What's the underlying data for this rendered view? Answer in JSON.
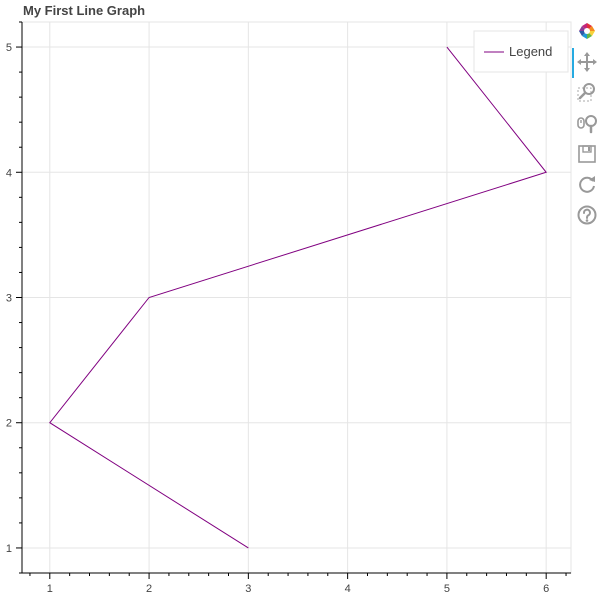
{
  "chart_data": {
    "type": "line",
    "title": "My First Line Graph",
    "x": [
      3,
      1,
      2,
      6,
      5
    ],
    "series": [
      {
        "name": "Legend",
        "values": [
          1,
          2,
          3,
          4,
          5
        ],
        "color": "#800080"
      }
    ],
    "xlim": [
      0.72,
      6.25
    ],
    "ylim": [
      0.8,
      5.2
    ],
    "xticks": [
      1,
      2,
      3,
      4,
      5,
      6
    ],
    "yticks": [
      1,
      2,
      3,
      4,
      5
    ],
    "grid": true,
    "legend_position": "top-right"
  },
  "toolbar": {
    "icons": [
      "bokeh-logo-icon",
      "pan-icon",
      "box-zoom-icon",
      "wheel-zoom-icon",
      "save-icon",
      "reset-icon",
      "help-icon"
    ],
    "accent": "#26aae1"
  }
}
